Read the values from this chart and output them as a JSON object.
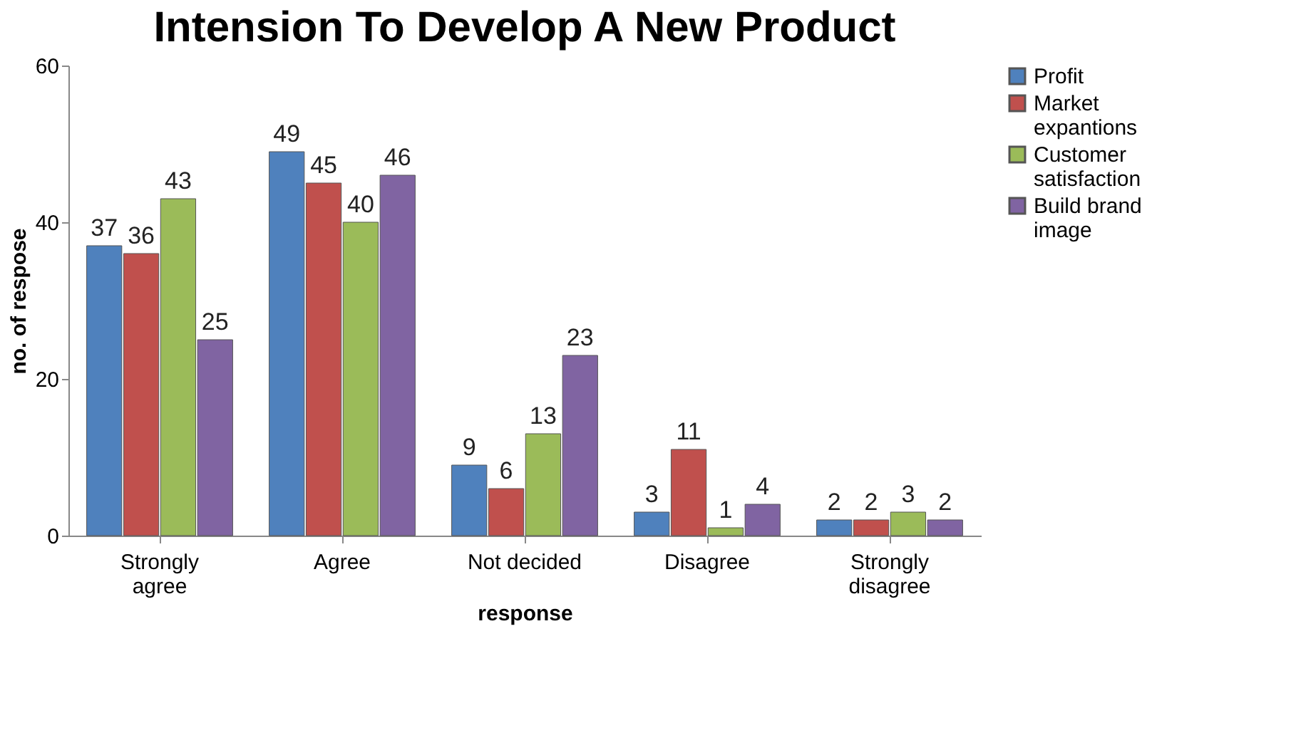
{
  "chart_data": {
    "type": "bar",
    "title": "Intension To Develop A New Product",
    "xlabel": "response",
    "ylabel": "no. of respose",
    "categories": [
      "Strongly agree",
      "Agree",
      "Not decided",
      "Disagree",
      "Strongly disagree"
    ],
    "series": [
      {
        "name": "Profit",
        "color": "#4f81bd",
        "values": [
          37,
          49,
          9,
          3,
          2
        ]
      },
      {
        "name": "Market expantions",
        "color": "#c0504d",
        "values": [
          36,
          45,
          6,
          11,
          2
        ]
      },
      {
        "name": "Customer satisfaction",
        "color": "#9bbb59",
        "values": [
          43,
          40,
          13,
          1,
          3
        ]
      },
      {
        "name": "Build brand image",
        "color": "#8064a2",
        "values": [
          25,
          46,
          23,
          4,
          2
        ]
      }
    ],
    "ylim": [
      0,
      60
    ],
    "yticks": [
      0,
      20,
      40,
      60
    ],
    "grid": false,
    "legend": "right",
    "data_labels": true
  }
}
